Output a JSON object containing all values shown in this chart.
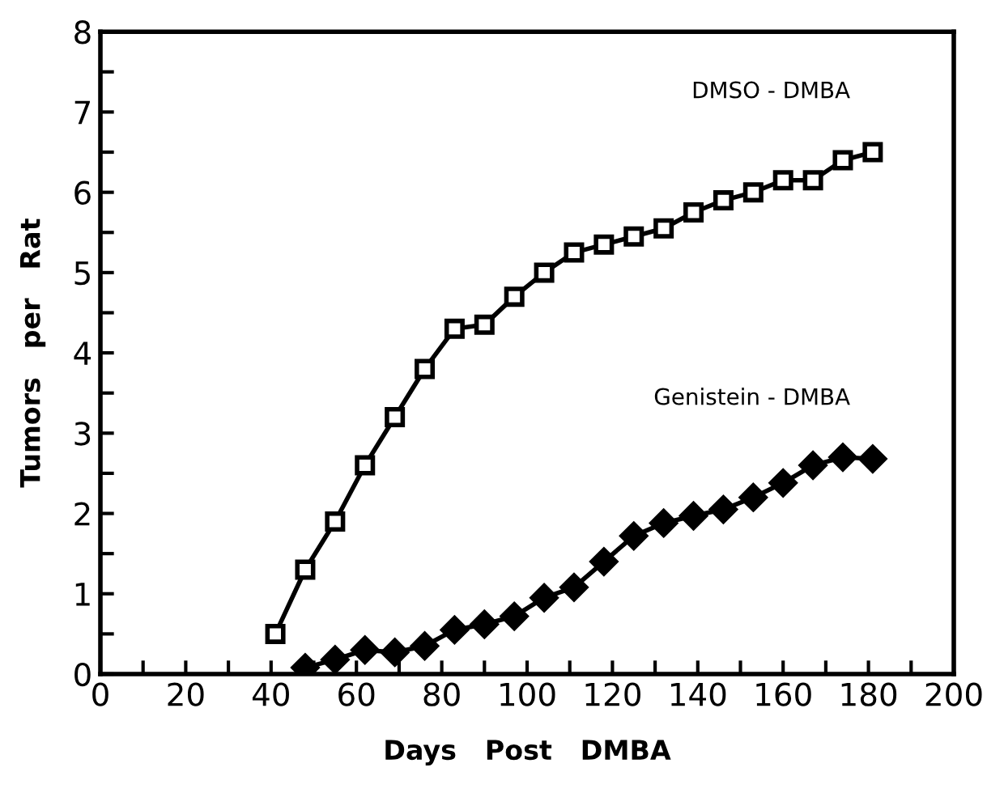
{
  "chart_data": {
    "type": "line",
    "xlabel": "Days   Post   DMBA",
    "ylabel": "Tumors   per   Rat",
    "xlim": [
      0,
      200
    ],
    "ylim": [
      0,
      8
    ],
    "xticks": [
      0,
      {
        "value": 10,
        "label": null
      },
      20,
      {
        "value": 30,
        "label": null
      },
      40,
      {
        "value": 50,
        "label": null
      },
      60,
      {
        "value": 70,
        "label": null
      },
      80,
      {
        "value": 90,
        "label": null
      },
      100,
      {
        "value": 110,
        "label": null
      },
      120,
      {
        "value": 130,
        "label": null
      },
      140,
      {
        "value": 150,
        "label": null
      },
      160,
      {
        "value": 170,
        "label": null
      },
      180,
      {
        "value": 190,
        "label": null
      },
      200
    ],
    "yticks": [
      0,
      {
        "value": 0.5,
        "label": null
      },
      1,
      {
        "value": 1.5,
        "label": null
      },
      2,
      {
        "value": 2.5,
        "label": null
      },
      3,
      {
        "value": 3.5,
        "label": null
      },
      4,
      {
        "value": 4.5,
        "label": null
      },
      5,
      {
        "value": 5.5,
        "label": null
      },
      6,
      {
        "value": 6.5,
        "label": null
      },
      7,
      {
        "value": 7.5,
        "label": null
      },
      8
    ],
    "grid": false,
    "line_style": "solid",
    "series": [
      {
        "name": "DMSO - DMBA",
        "color": "#000000",
        "marker": "square",
        "x": [
          41,
          48,
          55,
          62,
          69,
          76,
          83,
          90,
          97,
          104,
          111,
          118,
          125,
          132,
          139,
          146,
          153,
          160,
          167,
          174,
          181
        ],
        "values": [
          0.5,
          1.3,
          1.9,
          2.6,
          3.2,
          3.8,
          4.3,
          4.35,
          4.7,
          5.0,
          5.25,
          5.35,
          5.45,
          5.55,
          5.75,
          5.9,
          6.0,
          6.15,
          6.15,
          6.4,
          6.5
        ]
      },
      {
        "name": "Genistein - DMBA",
        "color": "#000000",
        "marker": "diamond",
        "x": [
          48,
          55,
          62,
          69,
          76,
          83,
          90,
          97,
          104,
          111,
          118,
          125,
          132,
          139,
          146,
          153,
          160,
          167,
          174,
          181
        ],
        "values": [
          0.08,
          0.18,
          0.3,
          0.27,
          0.35,
          0.55,
          0.62,
          0.72,
          0.95,
          1.08,
          1.4,
          1.72,
          1.88,
          1.97,
          2.05,
          2.2,
          2.38,
          2.6,
          2.7,
          2.68
        ]
      }
    ]
  }
}
